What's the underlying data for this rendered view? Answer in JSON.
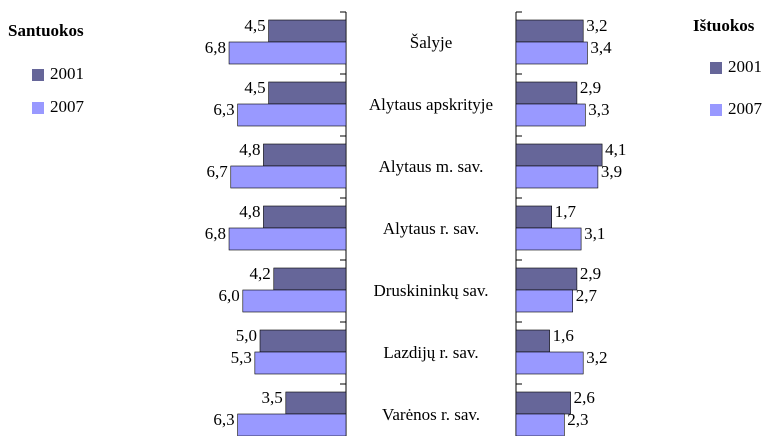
{
  "chart_data": [
    {
      "type": "bar",
      "orientation": "horizontal",
      "direction": "left",
      "title": "Santuokos",
      "categories": [
        "Šalyje",
        "Alytaus apskrityje",
        "Alytaus m. sav.",
        "Alytaus r. sav.",
        "Druskininkų sav.",
        "Lazdijų r. sav.",
        "Varėnos r. sav."
      ],
      "series": [
        {
          "name": "2001",
          "color": "#666699",
          "values": [
            4.5,
            4.5,
            4.8,
            4.8,
            4.2,
            5.0,
            3.5
          ],
          "value_labels": [
            "4,5",
            "4,5",
            "4,8",
            "4,8",
            "4,2",
            "5,0",
            "3,5"
          ]
        },
        {
          "name": "2007",
          "color": "#9999ff",
          "values": [
            6.8,
            6.3,
            6.7,
            6.8,
            6.0,
            5.3,
            6.3
          ],
          "value_labels": [
            "6,8",
            "6,3",
            "6,7",
            "6,8",
            "6,0",
            "5,3",
            "6,3"
          ]
        }
      ]
    },
    {
      "type": "bar",
      "orientation": "horizontal",
      "direction": "right",
      "title": "Ištuokos",
      "series": [
        {
          "name": "2001",
          "color": "#666699",
          "values": [
            3.2,
            2.9,
            4.1,
            1.7,
            2.9,
            1.6,
            2.6
          ],
          "value_labels": [
            "3,2",
            "2,9",
            "4,1",
            "1,7",
            "2,9",
            "1,6",
            "2,6"
          ]
        },
        {
          "name": "2007",
          "color": "#9999ff",
          "values": [
            3.4,
            3.3,
            3.9,
            3.1,
            2.7,
            3.2,
            2.3
          ],
          "value_labels": [
            "3,4",
            "3,3",
            "3,9",
            "3,1",
            "2,7",
            "3,2",
            "2,3"
          ]
        }
      ]
    }
  ]
}
